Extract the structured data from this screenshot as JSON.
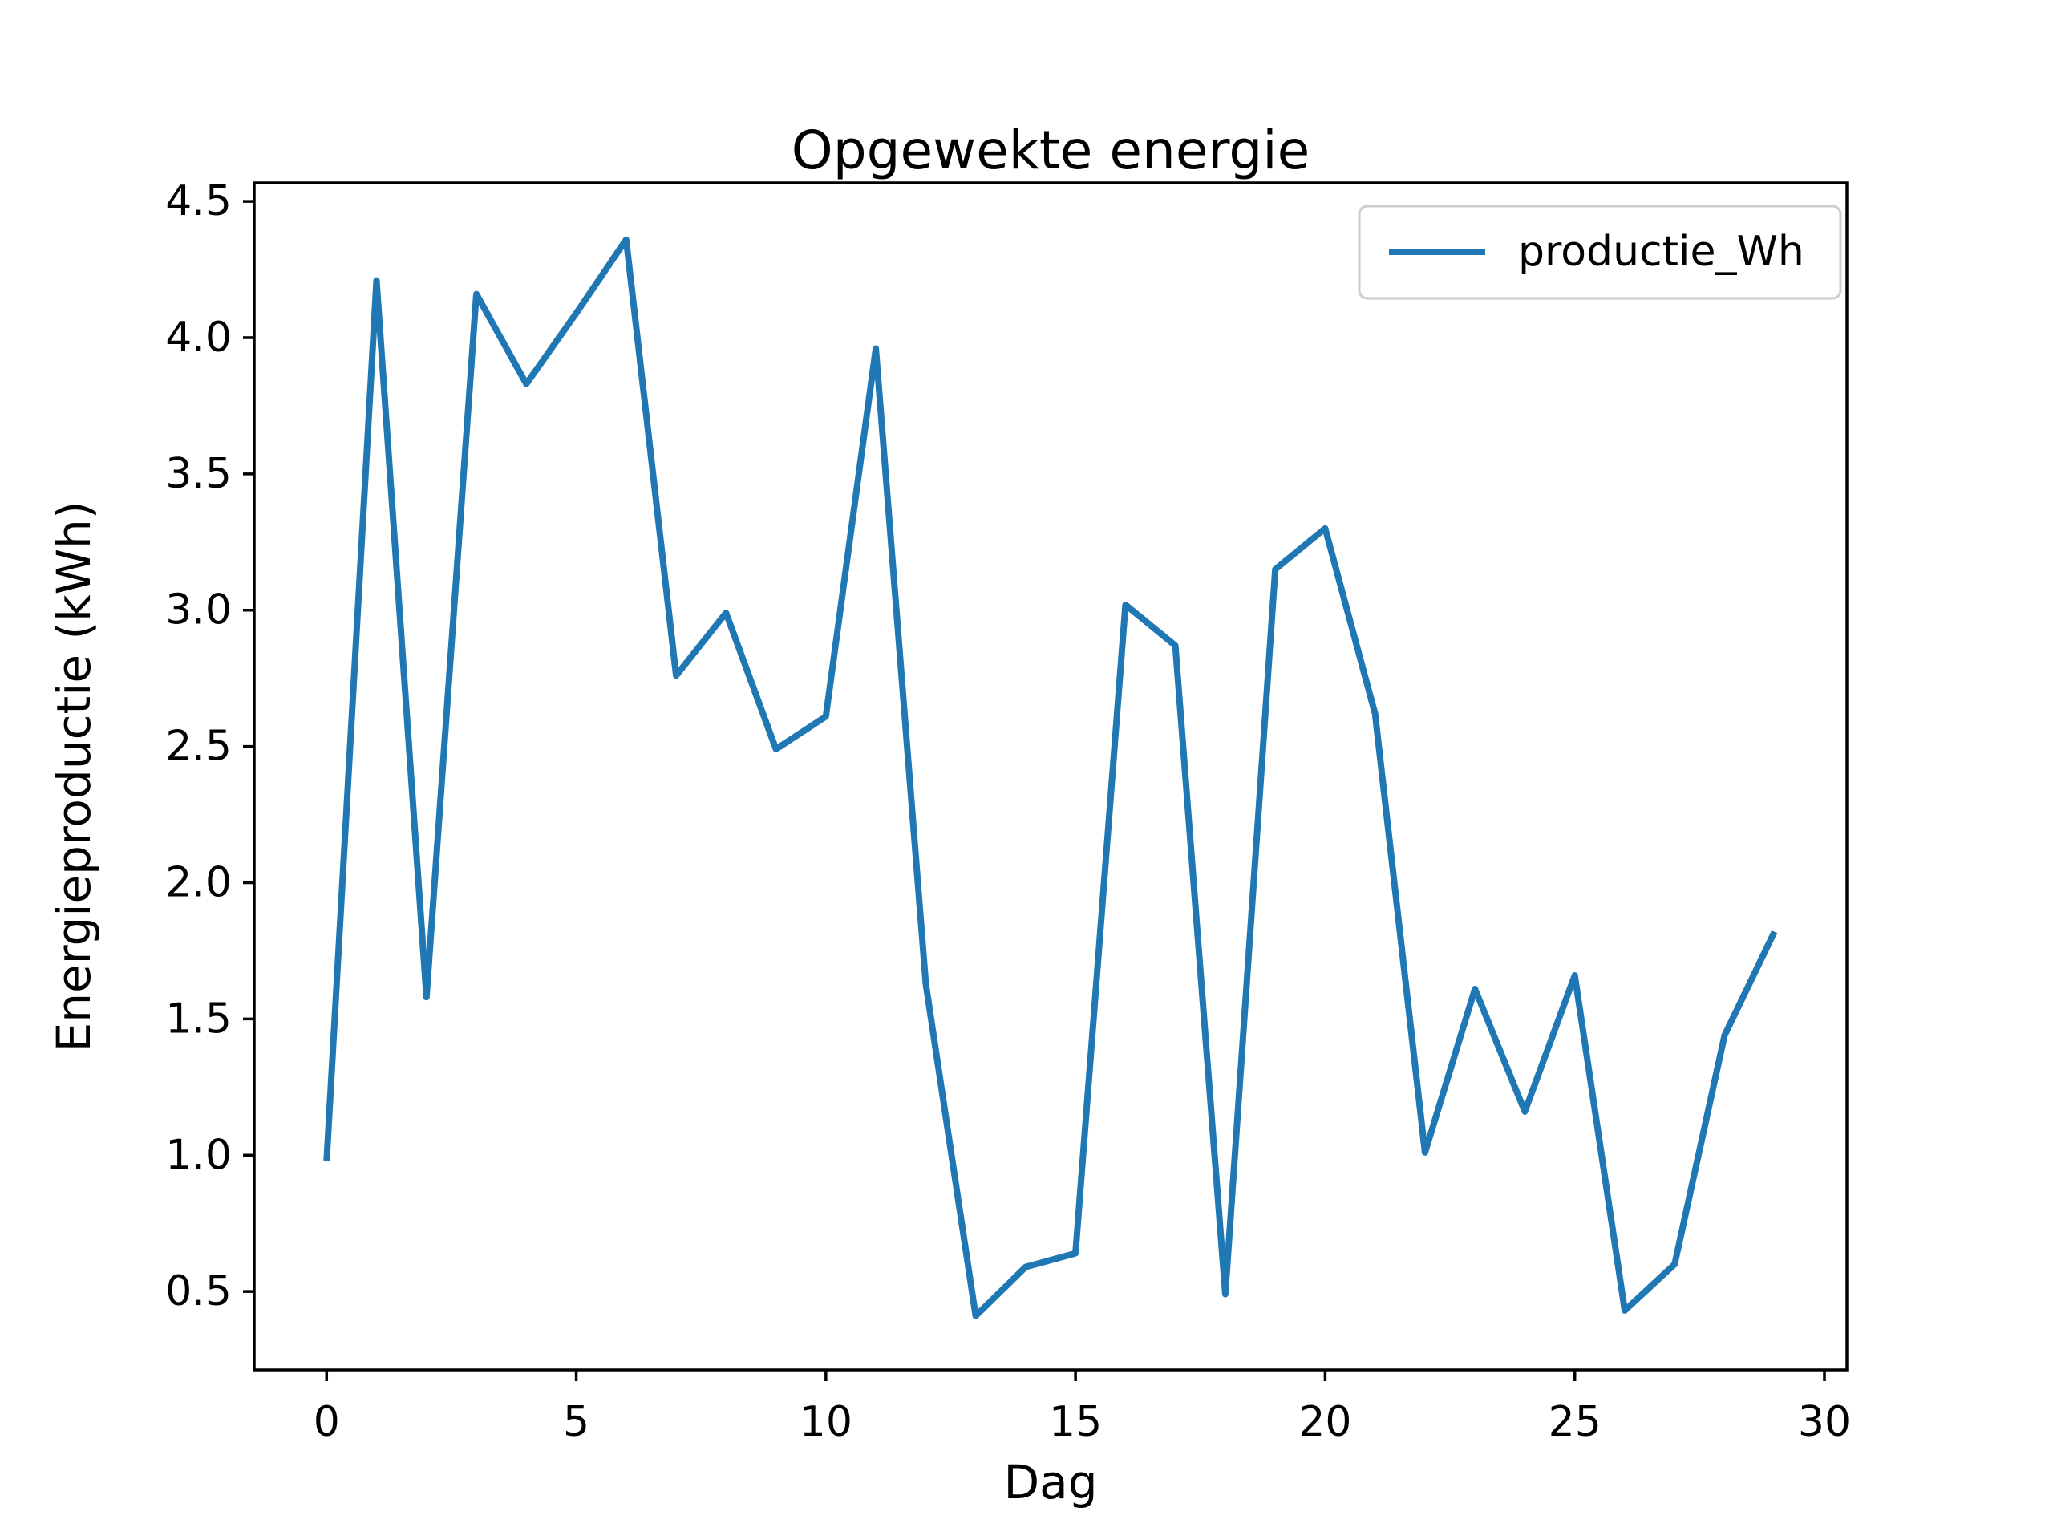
{
  "figure": {
    "background": "#ffffff",
    "axes_color": "#000000",
    "tick_color": "#000000"
  },
  "chart_data": {
    "type": "line",
    "title": "Opgewekte energie",
    "xlabel": "Dag",
    "ylabel": "Energieproductie (kWh)",
    "grid": false,
    "legend": {
      "position": "upper right",
      "entries": [
        "productie_Wh"
      ],
      "border_color": "#cccccc",
      "background": "#ffffff"
    },
    "x": [
      0,
      1,
      2,
      3,
      4,
      5,
      6,
      7,
      8,
      9,
      10,
      11,
      12,
      13,
      14,
      15,
      16,
      17,
      18,
      19,
      20,
      21,
      22,
      23,
      24,
      25,
      26,
      27,
      28,
      29
    ],
    "series": [
      {
        "name": "productie_Wh",
        "color": "#1f77b4",
        "values": [
          0.98,
          4.21,
          1.58,
          4.16,
          3.83,
          4.09,
          4.36,
          2.76,
          2.99,
          2.49,
          2.61,
          3.96,
          1.63,
          0.41,
          0.59,
          0.64,
          3.02,
          2.87,
          0.49,
          3.15,
          3.3,
          2.62,
          1.01,
          1.61,
          1.16,
          1.66,
          0.43,
          0.6,
          1.44,
          1.82
        ]
      }
    ],
    "xlim": [
      -1.45,
      30.45
    ],
    "ylim": [
      0.212,
      4.568
    ],
    "xticks": [
      0,
      5,
      10,
      15,
      20,
      25,
      30
    ],
    "xticklabels": [
      "0",
      "5",
      "10",
      "15",
      "20",
      "25",
      "30"
    ],
    "yticks": [
      0.5,
      1.0,
      1.5,
      2.0,
      2.5,
      3.0,
      3.5,
      4.0,
      4.5
    ],
    "yticklabels": [
      "0.5",
      "1.0",
      "1.5",
      "2.0",
      "2.5",
      "3.0",
      "3.5",
      "4.0",
      "4.5"
    ]
  }
}
